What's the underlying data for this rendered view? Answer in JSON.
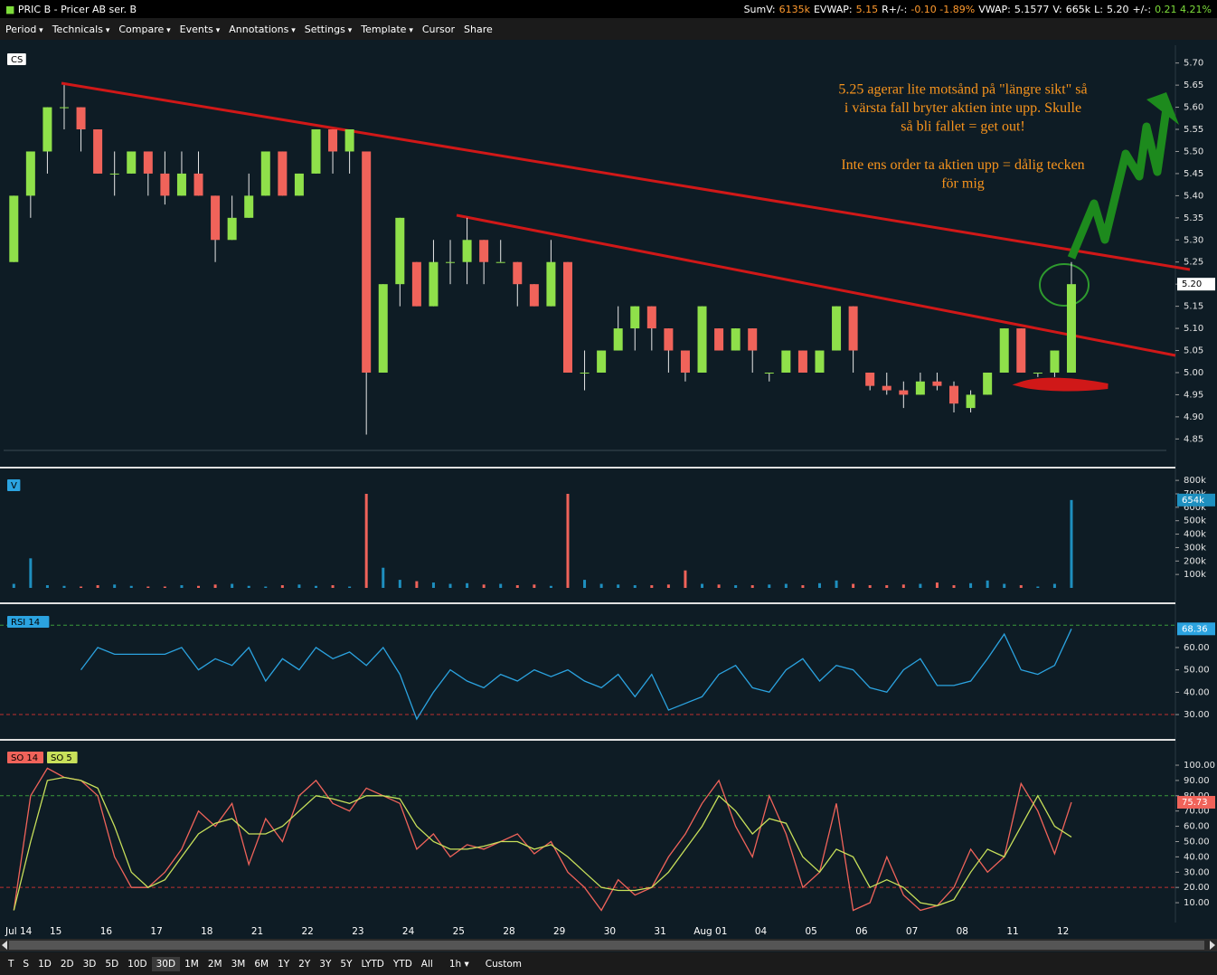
{
  "header": {
    "symbol": "PRIC B - Pricer AB ser. B",
    "stats": [
      {
        "label": "SumV:",
        "value": "6135k",
        "color": "#ff9a2e"
      },
      {
        "label": "EVWAP:",
        "value": "5.15",
        "color": "#ff9a2e"
      },
      {
        "label": "R+/-:",
        "value": "-0.10 -1.89%",
        "color": "#ff9a2e"
      },
      {
        "label": "VWAP:",
        "value": "5.1577",
        "color": "#ffffff"
      },
      {
        "label": "V:",
        "value": "665k",
        "color": "#ffffff"
      },
      {
        "label": "L:",
        "value": "5.20",
        "color": "#ffffff"
      },
      {
        "label": "+/-:",
        "value": "0.21 4.21%",
        "color": "#7ddc3a"
      }
    ]
  },
  "toolbar": {
    "menus": [
      "Period",
      "Technicals",
      "Compare",
      "Events",
      "Annotations",
      "Settings",
      "Template"
    ],
    "buttons": [
      "Cursor",
      "Share"
    ]
  },
  "price_panel": {
    "label": "CS",
    "ylim": [
      4.82,
      5.73
    ],
    "yticks": [
      {
        "value": 4.85,
        "label": "4.85"
      },
      {
        "value": 4.9,
        "label": "4.90"
      },
      {
        "value": 4.95,
        "label": "4.95"
      },
      {
        "value": 5.0,
        "label": "5.00"
      },
      {
        "value": 5.05,
        "label": "5.05"
      },
      {
        "value": 5.1,
        "label": "5.10"
      },
      {
        "value": 5.15,
        "label": "5.15"
      },
      {
        "value": 5.2,
        "label": "5.20"
      },
      {
        "value": 5.25,
        "label": "5.25"
      },
      {
        "value": 5.3,
        "label": "5.30"
      },
      {
        "value": 5.35,
        "label": "5.35"
      },
      {
        "value": 5.4,
        "label": "5.40"
      },
      {
        "value": 5.45,
        "label": "5.45"
      },
      {
        "value": 5.5,
        "label": "5.50"
      },
      {
        "value": 5.55,
        "label": "5.55"
      },
      {
        "value": 5.6,
        "label": "5.60"
      },
      {
        "value": 5.65,
        "label": "5.65"
      },
      {
        "value": 5.7,
        "label": "5.70"
      }
    ],
    "colors": {
      "up": "#8fe04a",
      "down": "#f0635a",
      "wick": "#e8e8e8"
    },
    "ohlc": [
      [
        5.25,
        5.4,
        5.25,
        5.4
      ],
      [
        5.4,
        5.5,
        5.35,
        5.5
      ],
      [
        5.5,
        5.6,
        5.45,
        5.6
      ],
      [
        5.6,
        5.65,
        5.55,
        5.6
      ],
      [
        5.6,
        5.6,
        5.5,
        5.55
      ],
      [
        5.55,
        5.55,
        5.45,
        5.45
      ],
      [
        5.45,
        5.5,
        5.4,
        5.45
      ],
      [
        5.45,
        5.5,
        5.45,
        5.5
      ],
      [
        5.5,
        5.5,
        5.4,
        5.45
      ],
      [
        5.45,
        5.5,
        5.38,
        5.4
      ],
      [
        5.4,
        5.5,
        5.4,
        5.45
      ],
      [
        5.45,
        5.5,
        5.4,
        5.4
      ],
      [
        5.4,
        5.4,
        5.25,
        5.3
      ],
      [
        5.3,
        5.4,
        5.3,
        5.35
      ],
      [
        5.35,
        5.45,
        5.35,
        5.4
      ],
      [
        5.4,
        5.5,
        5.4,
        5.5
      ],
      [
        5.5,
        5.5,
        5.4,
        5.4
      ],
      [
        5.4,
        5.45,
        5.4,
        5.45
      ],
      [
        5.45,
        5.55,
        5.45,
        5.55
      ],
      [
        5.55,
        5.55,
        5.45,
        5.5
      ],
      [
        5.5,
        5.55,
        5.45,
        5.55
      ],
      [
        5.5,
        5.5,
        4.86,
        5.0
      ],
      [
        5.0,
        5.2,
        5.0,
        5.2
      ],
      [
        5.2,
        5.35,
        5.15,
        5.35
      ],
      [
        5.25,
        5.25,
        5.15,
        5.15
      ],
      [
        5.15,
        5.3,
        5.15,
        5.25
      ],
      [
        5.25,
        5.3,
        5.2,
        5.25
      ],
      [
        5.25,
        5.35,
        5.2,
        5.3
      ],
      [
        5.3,
        5.3,
        5.2,
        5.25
      ],
      [
        5.25,
        5.3,
        5.25,
        5.25
      ],
      [
        5.25,
        5.25,
        5.15,
        5.2
      ],
      [
        5.2,
        5.2,
        5.15,
        5.15
      ],
      [
        5.15,
        5.3,
        5.15,
        5.25
      ],
      [
        5.25,
        5.25,
        5.0,
        5.0
      ],
      [
        5.0,
        5.05,
        4.96,
        5.0
      ],
      [
        5.0,
        5.05,
        5.0,
        5.05
      ],
      [
        5.05,
        5.15,
        5.05,
        5.1
      ],
      [
        5.1,
        5.15,
        5.05,
        5.15
      ],
      [
        5.15,
        5.15,
        5.05,
        5.1
      ],
      [
        5.1,
        5.1,
        5.0,
        5.05
      ],
      [
        5.05,
        5.05,
        4.98,
        5.0
      ],
      [
        5.0,
        5.15,
        5.0,
        5.15
      ],
      [
        5.1,
        5.1,
        5.05,
        5.05
      ],
      [
        5.05,
        5.1,
        5.05,
        5.1
      ],
      [
        5.1,
        5.1,
        5.0,
        5.05
      ],
      [
        5.0,
        5.0,
        4.98,
        5.0
      ],
      [
        5.0,
        5.05,
        5.0,
        5.05
      ],
      [
        5.05,
        5.05,
        5.0,
        5.0
      ],
      [
        5.0,
        5.05,
        5.0,
        5.05
      ],
      [
        5.05,
        5.15,
        5.05,
        5.15
      ],
      [
        5.15,
        5.15,
        5.0,
        5.05
      ],
      [
        5.0,
        5.0,
        4.96,
        4.97
      ],
      [
        4.97,
        5.0,
        4.95,
        4.96
      ],
      [
        4.96,
        4.98,
        4.92,
        4.95
      ],
      [
        4.95,
        5.0,
        4.95,
        4.98
      ],
      [
        4.98,
        5.0,
        4.96,
        4.97
      ],
      [
        4.97,
        4.98,
        4.91,
        4.93
      ],
      [
        4.92,
        4.96,
        4.91,
        4.95
      ],
      [
        4.95,
        5.0,
        4.95,
        5.0
      ],
      [
        5.0,
        5.1,
        5.0,
        5.1
      ],
      [
        5.1,
        5.1,
        5.0,
        5.0
      ],
      [
        5.0,
        5.0,
        4.99,
        5.0
      ],
      [
        5.0,
        5.05,
        4.99,
        5.05
      ],
      [
        5.0,
        5.25,
        5.0,
        5.2
      ]
    ],
    "last": {
      "value": 5.2,
      "label": "5.20"
    }
  },
  "annotation": {
    "color": "#f7941d",
    "paragraphs": [
      [
        "5.25 agerar lite motsånd på \"längre sikt\" så",
        "i värsta fall bryter aktien inte upp. Skulle",
        "så bli fallet = get out!"
      ],
      [
        "Inte ens order ta aktien upp = dålig tecken",
        "för mig"
      ]
    ]
  },
  "volume_panel": {
    "label": "V",
    "ylim": [
      0,
      875000
    ],
    "yticks": [
      {
        "value": 100000,
        "label": "100k"
      },
      {
        "value": 200000,
        "label": "200k"
      },
      {
        "value": 300000,
        "label": "300k"
      },
      {
        "value": 400000,
        "label": "400k"
      },
      {
        "value": 500000,
        "label": "500k"
      },
      {
        "value": 600000,
        "label": "600k"
      },
      {
        "value": 700000,
        "label": "700k"
      },
      {
        "value": 800000,
        "label": "800k"
      }
    ],
    "colors": {
      "up": "#1e8fbf",
      "down": "#f0635a"
    },
    "values": [
      30000,
      220000,
      20000,
      15000,
      10000,
      20000,
      25000,
      15000,
      10000,
      10000,
      20000,
      15000,
      25000,
      30000,
      15000,
      10000,
      20000,
      25000,
      15000,
      20000,
      10000,
      700000,
      150000,
      60000,
      50000,
      40000,
      30000,
      35000,
      25000,
      30000,
      20000,
      25000,
      15000,
      700000,
      60000,
      30000,
      25000,
      20000,
      20000,
      25000,
      130000,
      30000,
      25000,
      20000,
      20000,
      25000,
      30000,
      20000,
      35000,
      55000,
      30000,
      20000,
      20000,
      25000,
      30000,
      40000,
      20000,
      35000,
      55000,
      30000,
      20000,
      10000,
      30000,
      654000
    ],
    "last": {
      "value": 654000,
      "label": "654k"
    }
  },
  "rsi_panel": {
    "label": "RSI 14",
    "color": "#2ba3e0",
    "ylim": [
      19.9,
      78.6
    ],
    "yticks": [
      {
        "value": 30,
        "label": "30.00"
      },
      {
        "value": 40,
        "label": "40.00"
      },
      {
        "value": 50,
        "label": "50.00"
      },
      {
        "value": 60,
        "label": "60.00"
      }
    ],
    "levels": [
      {
        "value": 70,
        "color": "#3a9a3a"
      },
      {
        "value": 30,
        "color": "#c03030"
      }
    ],
    "values": [
      null,
      null,
      null,
      null,
      50,
      60,
      57,
      57,
      57,
      57,
      60,
      50,
      55,
      52,
      60,
      45,
      55,
      50,
      60,
      55,
      58,
      52,
      60,
      48,
      28,
      40,
      50,
      45,
      42,
      48,
      45,
      50,
      47,
      50,
      45,
      42,
      48,
      38,
      48,
      32,
      35,
      38,
      48,
      52,
      42,
      40,
      50,
      55,
      45,
      52,
      50,
      42,
      40,
      50,
      55,
      43,
      43,
      45,
      55,
      66,
      50,
      48,
      52,
      68.36
    ],
    "last": {
      "value": 68.36,
      "label": "68.36"
    }
  },
  "so_panel": {
    "ylim": [
      -1.8,
      115.4
    ],
    "yticks": [
      {
        "value": 10,
        "label": "10.00"
      },
      {
        "value": 20,
        "label": "20.00"
      },
      {
        "value": 30,
        "label": "30.00"
      },
      {
        "value": 40,
        "label": "40.00"
      },
      {
        "value": 50,
        "label": "50.00"
      },
      {
        "value": 60,
        "label": "60.00"
      },
      {
        "value": 70,
        "label": "70.00"
      },
      {
        "value": 80,
        "label": "80.00"
      },
      {
        "value": 90,
        "label": "90.00"
      },
      {
        "value": 100,
        "label": "100.00"
      }
    ],
    "levels": [
      {
        "value": 80,
        "color": "#3a9a3a"
      },
      {
        "value": 20,
        "color": "#c03030"
      }
    ],
    "series": [
      {
        "name": "SO 14",
        "color": "#f0635a",
        "values": [
          5,
          80,
          98,
          92,
          90,
          80,
          40,
          20,
          20,
          30,
          45,
          70,
          60,
          75,
          35,
          65,
          50,
          80,
          90,
          75,
          70,
          85,
          80,
          75,
          45,
          55,
          40,
          48,
          45,
          50,
          55,
          42,
          50,
          30,
          20,
          5,
          25,
          15,
          20,
          40,
          55,
          75,
          90,
          60,
          40,
          80,
          55,
          20,
          30,
          75,
          5,
          10,
          40,
          15,
          5,
          8,
          20,
          45,
          30,
          40,
          88,
          70,
          42,
          75.73
        ]
      },
      {
        "name": "SO 5",
        "color": "#c8e05a",
        "values": [
          5,
          50,
          90,
          92,
          90,
          85,
          60,
          30,
          20,
          25,
          40,
          55,
          62,
          65,
          55,
          55,
          60,
          70,
          80,
          78,
          75,
          80,
          80,
          78,
          60,
          50,
          45,
          45,
          47,
          50,
          50,
          45,
          48,
          40,
          30,
          20,
          18,
          18,
          20,
          30,
          45,
          60,
          80,
          70,
          55,
          65,
          62,
          40,
          30,
          45,
          40,
          20,
          25,
          20,
          10,
          8,
          12,
          30,
          45,
          40,
          60,
          80,
          60,
          53
        ]
      }
    ],
    "last": {
      "value": 75.73,
      "label": "75.73"
    }
  },
  "x_axis": {
    "labels": [
      "Jul 14",
      "15",
      "16",
      "17",
      "18",
      "21",
      "22",
      "23",
      "24",
      "25",
      "28",
      "29",
      "30",
      "31",
      "Aug 01",
      "04",
      "05",
      "06",
      "07",
      "08",
      "11",
      "12"
    ]
  },
  "footer": {
    "ranges": [
      "T",
      "S",
      "1D",
      "2D",
      "3D",
      "5D",
      "10D",
      "30D",
      "1M",
      "2M",
      "3M",
      "6M",
      "1Y",
      "2Y",
      "3Y",
      "5Y",
      "LYTD",
      "YTD",
      "All"
    ],
    "active": "30D",
    "interval": "1h",
    "custom": "Custom"
  }
}
